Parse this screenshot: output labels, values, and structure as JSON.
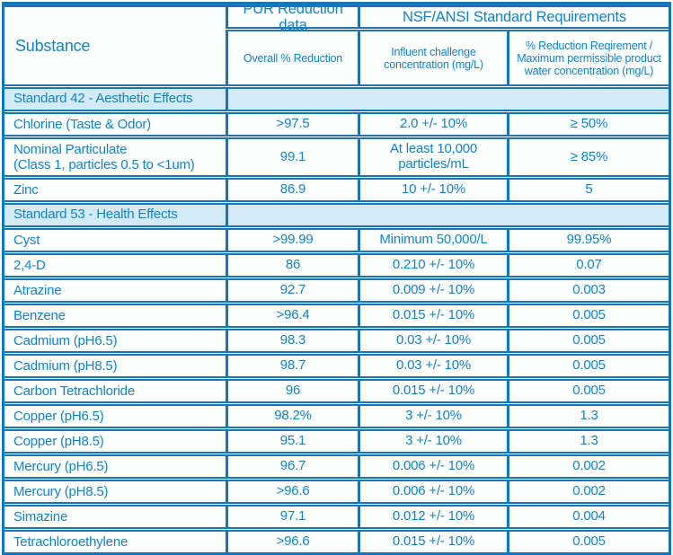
{
  "colors": {
    "border_blue": "#1377bd",
    "text_blue": "#1283cb",
    "section_row_bg": "#d3ebf8"
  },
  "header": {
    "substance_label": "Substance",
    "pur_group_label": "PUR Reduction data",
    "nsf_group_label": "NSF/ANSI Standard Requirements",
    "sub_columns": {
      "overall": "Overall % Reduction",
      "influent": "Influent challenge\nconcentration  (mg/L)",
      "requirement": "% Reduction Reqirement /\nMaximum permissible product\nwater concentration (mg/L)"
    }
  },
  "sections": [
    {
      "title": "Standard 42 - Aesthetic Effects",
      "rows": [
        {
          "substance": "Chlorine (Taste & Odor)",
          "overall_reduction": ">97.5",
          "influent": "2.0 +/- 10%",
          "requirement": "≥ 50%"
        },
        {
          "substance": "Nominal Particulate\n(Class 1, particles 0.5 to <1um)",
          "overall_reduction": "99.1",
          "influent": "At least 10,000\nparticles/mL",
          "requirement": "≥ 85%",
          "tall": true
        },
        {
          "substance": "Zinc",
          "overall_reduction": "86.9",
          "influent": "10 +/- 10%",
          "requirement": "5"
        }
      ]
    },
    {
      "title": "Standard 53 - Health Effects",
      "rows": [
        {
          "substance": "Cyst",
          "overall_reduction": ">99.99",
          "influent": "Minimum 50,000/L",
          "requirement": "99.95%"
        },
        {
          "substance": "2,4-D",
          "overall_reduction": "86",
          "influent": "0.210 +/- 10%",
          "requirement": "0.07"
        },
        {
          "substance": "Atrazine",
          "overall_reduction": "92.7",
          "influent": "0.009 +/- 10%",
          "requirement": "0.003"
        },
        {
          "substance": "Benzene",
          "overall_reduction": ">96.4",
          "influent": "0.015 +/- 10%",
          "requirement": "0.005"
        },
        {
          "substance": "Cadmium (pH6.5)",
          "overall_reduction": "98.3",
          "influent": "0.03 +/- 10%",
          "requirement": "0.005"
        },
        {
          "substance": "Cadmium (pH8.5)",
          "overall_reduction": "98.7",
          "influent": "0.03 +/- 10%",
          "requirement": "0.005"
        },
        {
          "substance": "Carbon Tetrachloride",
          "overall_reduction": "96",
          "influent": "0.015 +/- 10%",
          "requirement": "0.005"
        },
        {
          "substance": "Copper (pH6.5)",
          "overall_reduction": "98.2%",
          "influent": "3 +/- 10%",
          "requirement": "1.3"
        },
        {
          "substance": "Copper (pH8.5)",
          "overall_reduction": "95.1",
          "influent": "3 +/- 10%",
          "requirement": "1.3"
        },
        {
          "substance": "Mercury (pH6.5)",
          "overall_reduction": "96.7",
          "influent": "0.006 +/- 10%",
          "requirement": "0.002"
        },
        {
          "substance": "Mercury (pH8.5)",
          "overall_reduction": ">96.6",
          "influent": "0.006 +/- 10%",
          "requirement": "0.002"
        },
        {
          "substance": "Simazine",
          "overall_reduction": "97.1",
          "influent": "0.012 +/- 10%",
          "requirement": "0.004"
        },
        {
          "substance": "Tetrachloroethylene",
          "overall_reduction": ">96.6",
          "influent": "0.015 +/- 10%",
          "requirement": "0.005"
        }
      ]
    }
  ]
}
